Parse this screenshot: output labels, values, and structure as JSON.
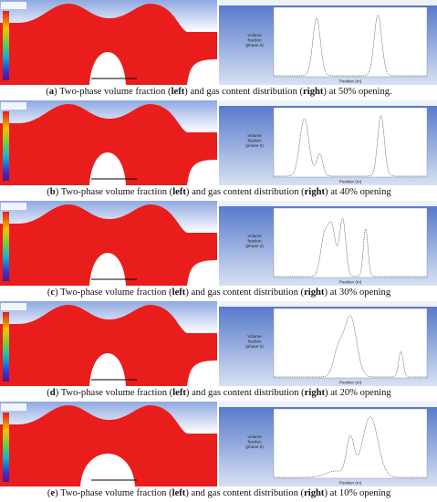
{
  "panels": [
    {
      "caption": [
        {
          "text": "(",
          "bold": false
        },
        {
          "text": "a",
          "bold": true
        },
        {
          "text": ") Two-phase volume fraction (",
          "bold": false
        },
        {
          "text": "left",
          "bold": true
        },
        {
          "text": ") and gas content distribution (",
          "bold": false
        },
        {
          "text": "right",
          "bold": true
        },
        {
          "text": ") at 50% opening.",
          "bold": false
        }
      ],
      "y_label": [
        "Volume",
        "fraction",
        "(phase-2)"
      ],
      "x_label": "Position (m)"
    },
    {
      "caption": [
        {
          "text": "(",
          "bold": false
        },
        {
          "text": "b",
          "bold": true
        },
        {
          "text": ") Two-phase volume fraction (",
          "bold": false
        },
        {
          "text": "left",
          "bold": true
        },
        {
          "text": ") and gas content distribution (",
          "bold": false
        },
        {
          "text": "right",
          "bold": true
        },
        {
          "text": ") at 40% opening",
          "bold": false
        }
      ],
      "y_label": [
        "Volume",
        "fraction",
        "(phase-2)"
      ],
      "x_label": "Position (m)"
    },
    {
      "caption": [
        {
          "text": "(",
          "bold": false
        },
        {
          "text": "c",
          "bold": true
        },
        {
          "text": ") Two-phase volume fraction (",
          "bold": false
        },
        {
          "text": "left",
          "bold": true
        },
        {
          "text": ") and gas content distribution (",
          "bold": false
        },
        {
          "text": "right",
          "bold": true
        },
        {
          "text": ") at 30% opening",
          "bold": false
        }
      ],
      "y_label": [
        "Volume",
        "fraction",
        "(phase-2)"
      ],
      "x_label": "Position (m)"
    },
    {
      "caption": [
        {
          "text": "(",
          "bold": false
        },
        {
          "text": "d",
          "bold": true
        },
        {
          "text": ") Two-phase volume fraction (",
          "bold": false
        },
        {
          "text": "left",
          "bold": true
        },
        {
          "text": ") and gas content distribution (",
          "bold": false
        },
        {
          "text": "right",
          "bold": true
        },
        {
          "text": ") at 20% opening",
          "bold": false
        }
      ],
      "y_label": [
        "Volume",
        "fraction",
        "(phase-2)"
      ],
      "x_label": "Position (m)"
    },
    {
      "caption": [
        {
          "text": "(",
          "bold": false
        },
        {
          "text": "e",
          "bold": true
        },
        {
          "text": ") Two-phase volume fraction (",
          "bold": false
        },
        {
          "text": "left",
          "bold": true
        },
        {
          "text": ") and gas content distribution (",
          "bold": false
        },
        {
          "text": "right",
          "bold": true
        },
        {
          "text": ") at 10% opening",
          "bold": false
        }
      ],
      "y_label": [
        "Volume",
        "fraction",
        "(phase-2)"
      ],
      "x_label": "Position (m)"
    }
  ]
}
